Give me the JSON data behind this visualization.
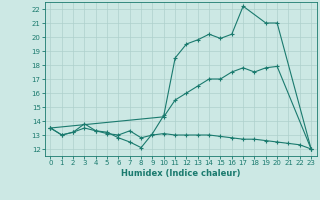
{
  "title": "",
  "xlabel": "Humidex (Indice chaleur)",
  "bg_color": "#cce8e4",
  "line_color": "#1a7a6e",
  "grid_color": "#aed0cc",
  "xlim": [
    -0.5,
    23.5
  ],
  "ylim": [
    11.5,
    22.5
  ],
  "xticks": [
    0,
    1,
    2,
    3,
    4,
    5,
    6,
    7,
    8,
    9,
    10,
    11,
    12,
    13,
    14,
    15,
    16,
    17,
    18,
    19,
    20,
    21,
    22,
    23
  ],
  "yticks": [
    12,
    13,
    14,
    15,
    16,
    17,
    18,
    19,
    20,
    21,
    22
  ],
  "line1_x": [
    0,
    1,
    2,
    3,
    4,
    5,
    6,
    7,
    8,
    9,
    10,
    11,
    12,
    13,
    14,
    15,
    16,
    17,
    19,
    20,
    23
  ],
  "line1_y": [
    13.5,
    13.0,
    13.2,
    13.8,
    13.3,
    13.2,
    12.8,
    12.5,
    12.1,
    13.1,
    14.4,
    18.5,
    19.5,
    19.8,
    20.2,
    19.9,
    20.2,
    22.2,
    21.0,
    21.0,
    12.0
  ],
  "line2_x": [
    0,
    10,
    11,
    12,
    13,
    14,
    15,
    16,
    17,
    18,
    19,
    20,
    23
  ],
  "line2_y": [
    13.5,
    14.3,
    15.5,
    16.0,
    16.5,
    17.0,
    17.0,
    17.5,
    17.8,
    17.5,
    17.8,
    17.9,
    12.0
  ],
  "line3_x": [
    0,
    1,
    2,
    3,
    4,
    5,
    6,
    7,
    8,
    9,
    10,
    11,
    12,
    13,
    14,
    15,
    16,
    17,
    18,
    19,
    20,
    21,
    22,
    23
  ],
  "line3_y": [
    13.5,
    13.0,
    13.2,
    13.5,
    13.3,
    13.1,
    13.0,
    13.3,
    12.8,
    13.0,
    13.1,
    13.0,
    13.0,
    13.0,
    13.0,
    12.9,
    12.8,
    12.7,
    12.7,
    12.6,
    12.5,
    12.4,
    12.3,
    12.0
  ],
  "marker": "+",
  "markersize": 3,
  "linewidth": 0.8
}
